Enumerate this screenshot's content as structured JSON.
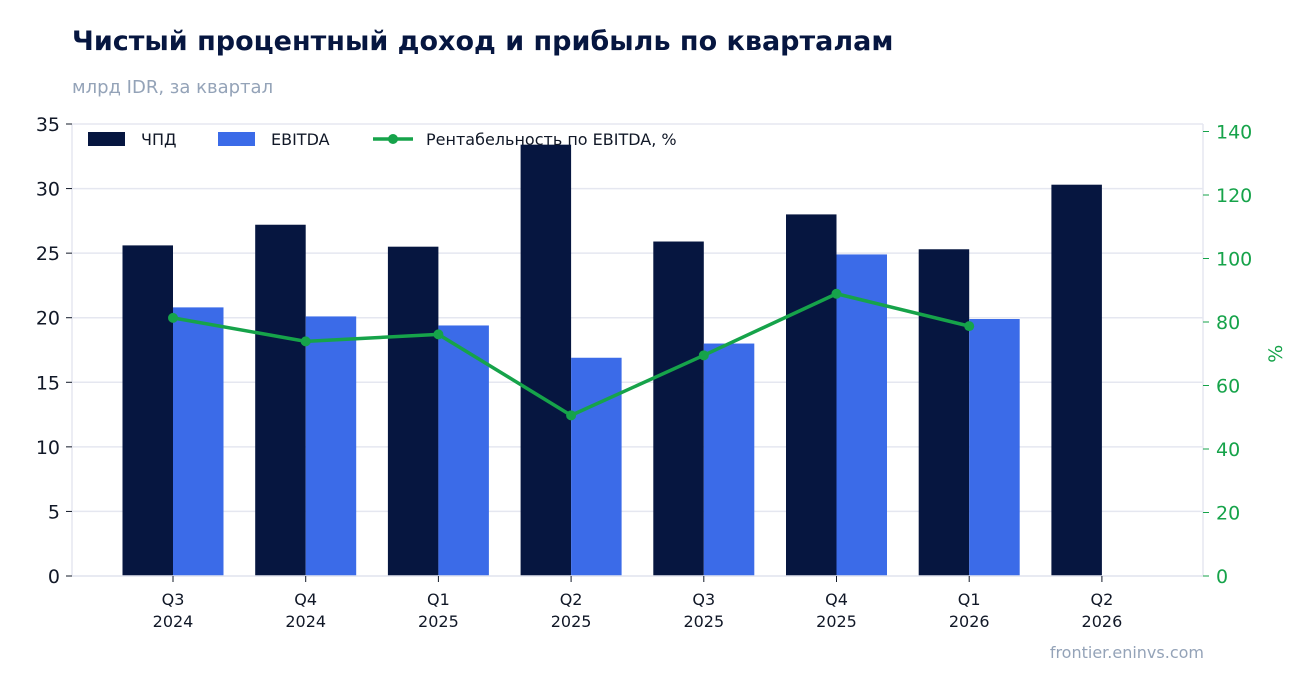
{
  "title": "Чистый процентный доход и прибыль по кварталам",
  "subtitle": "млрд IDR, за квартал",
  "source": "frontier.eninvs.com",
  "colors": {
    "nii": "#061640",
    "ebitda": "#3b6be8",
    "margin": "#16a34a",
    "grid": "#e5e7f0",
    "title": "#061640",
    "muted": "#94a3b8"
  },
  "chart_data": {
    "type": "bar",
    "categories": [
      [
        "Q3",
        "2024"
      ],
      [
        "Q4",
        "2024"
      ],
      [
        "Q1",
        "2025"
      ],
      [
        "Q2",
        "2025"
      ],
      [
        "Q3",
        "2025"
      ],
      [
        "Q4",
        "2025"
      ],
      [
        "Q1",
        "2026"
      ],
      [
        "Q2",
        "2026"
      ]
    ],
    "series": [
      {
        "name": "ЧПД",
        "type": "bar",
        "axis": "left",
        "values": [
          25.6,
          27.2,
          25.5,
          33.4,
          25.9,
          28.0,
          25.3,
          30.3
        ]
      },
      {
        "name": "EBITDA",
        "type": "bar",
        "axis": "left",
        "values": [
          20.8,
          20.1,
          19.4,
          16.9,
          18.0,
          24.9,
          19.9,
          null
        ]
      },
      {
        "name": "Рентабельность по EBITDA, %",
        "type": "line",
        "axis": "right",
        "values": [
          81.3,
          73.9,
          76.1,
          50.6,
          69.5,
          88.9,
          78.7,
          null
        ]
      }
    ],
    "ylim": [
      0,
      35
    ],
    "yticks": [
      0,
      5,
      10,
      15,
      20,
      25,
      30,
      35
    ],
    "y2lim": [
      0,
      140
    ],
    "y2ticks": [
      0,
      20,
      40,
      60,
      80,
      100,
      120,
      140
    ],
    "y2label": "%",
    "grid": true,
    "legend_position": "top-left"
  }
}
